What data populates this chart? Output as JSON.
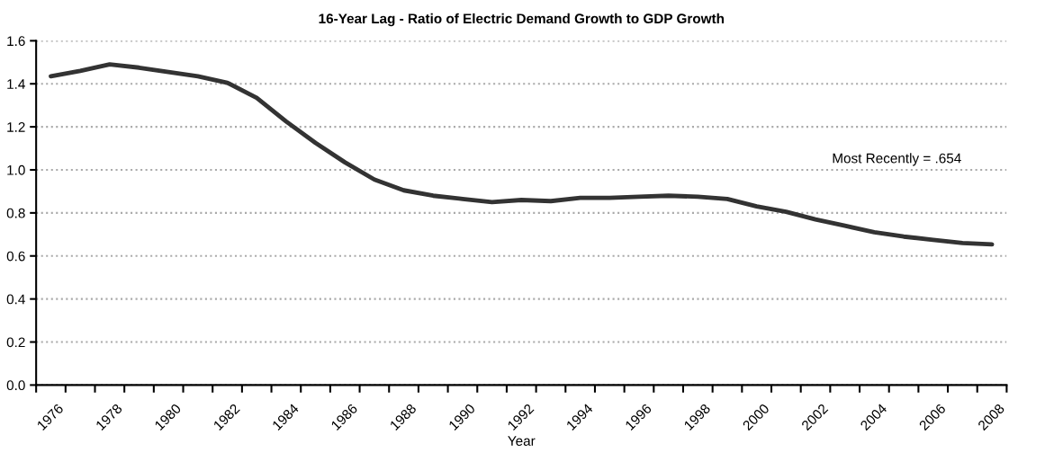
{
  "chart_data": {
    "type": "line",
    "title": "16-Year Lag - Ratio of Electric Demand Growth to GDP Growth",
    "xlabel": "Year",
    "categories": [
      "1976",
      null,
      "1978",
      null,
      "1980",
      null,
      "1982",
      null,
      "1984",
      null,
      "1986",
      null,
      "1988",
      null,
      "1990",
      null,
      "1992",
      null,
      "1994",
      null,
      "1996",
      null,
      "1998",
      null,
      "2000",
      null,
      "2002",
      null,
      "2004",
      null,
      "2006",
      null,
      "2008"
    ],
    "series": [
      {
        "color": "#333333",
        "values": [
          1.435,
          1.46,
          1.49,
          1.475,
          1.455,
          1.435,
          1.405,
          1.335,
          1.225,
          1.125,
          1.035,
          0.955,
          0.905,
          0.88,
          0.865,
          0.85,
          0.86,
          0.855,
          0.87,
          0.87,
          0.875,
          0.88,
          0.875,
          0.865,
          0.83,
          0.805,
          0.77,
          0.74,
          0.71,
          0.69,
          0.675,
          0.66,
          0.654
        ]
      }
    ],
    "ylim": [
      0,
      1.6
    ],
    "yticks": [
      {
        "value": 0,
        "label": "0.0"
      },
      0.2,
      0.4,
      0.6,
      0.8,
      {
        "value": 1,
        "label": "1.0"
      },
      1.2,
      1.4,
      1.6
    ],
    "grid": "y",
    "line_style": "solid",
    "annotations": [
      "Most Recently = .654"
    ]
  }
}
